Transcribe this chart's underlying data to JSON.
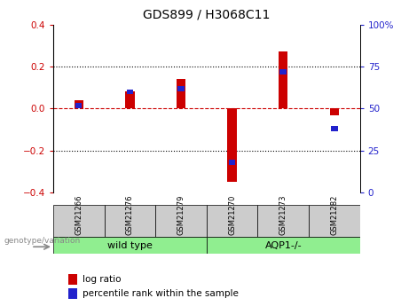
{
  "title": "GDS899 / H3068C11",
  "samples": [
    "GSM21266",
    "GSM21276",
    "GSM21279",
    "GSM21270",
    "GSM21273",
    "GSM21282"
  ],
  "log_ratio": [
    0.04,
    0.08,
    0.14,
    -0.35,
    0.27,
    -0.03
  ],
  "percentile_rank": [
    52,
    60,
    62,
    18,
    72,
    38
  ],
  "left_ylim": [
    -0.4,
    0.4
  ],
  "right_ylim": [
    0,
    100
  ],
  "left_yticks": [
    -0.4,
    -0.2,
    0.0,
    0.2,
    0.4
  ],
  "right_yticks": [
    0,
    25,
    50,
    75,
    100
  ],
  "right_yticklabels": [
    "0",
    "25",
    "50",
    "75",
    "100%"
  ],
  "bar_color_red": "#cc0000",
  "bar_color_blue": "#2222cc",
  "grid_color": "black",
  "zero_line_color": "#cc0000",
  "left_tick_color": "#cc0000",
  "right_tick_color": "#2222cc",
  "red_bar_width": 0.18,
  "blue_bar_width": 0.13,
  "blue_bar_height": 0.025,
  "group_box_color": "#cccccc",
  "green_color": "#90EE90",
  "genotype_label": "genotype/variation",
  "legend_red": "log ratio",
  "legend_blue": "percentile rank within the sample",
  "group_defs": [
    {
      "start": 0,
      "end": 2,
      "label": "wild type"
    },
    {
      "start": 3,
      "end": 5,
      "label": "AQP1-/-"
    }
  ]
}
